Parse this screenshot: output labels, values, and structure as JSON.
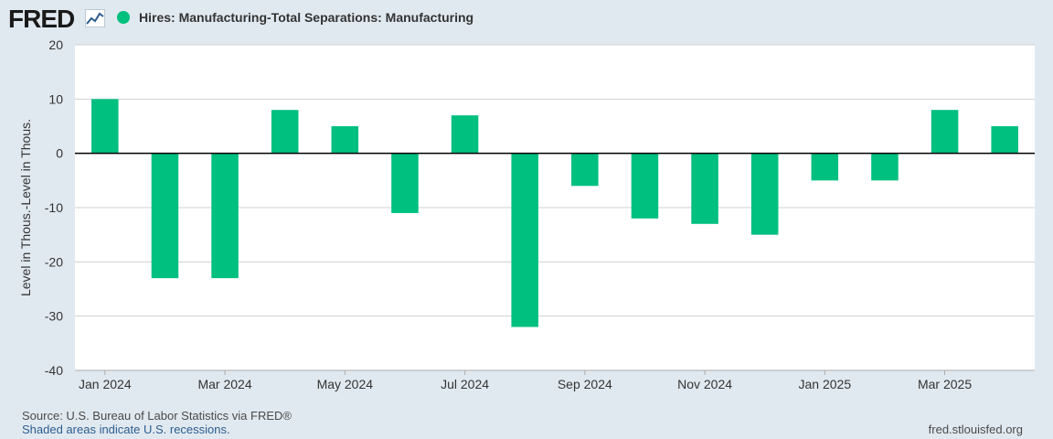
{
  "header": {
    "logo_text": "FRED",
    "legend_label": "Hires: Manufacturing-Total Separations: Manufacturing"
  },
  "colors": {
    "series": "#00c07f",
    "plot_bg": "#ffffff",
    "page_bg": "#e1e9f0",
    "grid": "#d0d0d0",
    "zero_line": "#000000"
  },
  "chart_data": {
    "type": "bar",
    "title": "Hires: Manufacturing-Total Separations: Manufacturing",
    "xlabel": "",
    "ylabel": "Level in Thous.-Level in Thous.",
    "ylim": [
      -40,
      20
    ],
    "yticks": [
      20,
      10,
      0,
      -10,
      -20,
      -30,
      -40
    ],
    "categories": [
      "Jan 2024",
      "Feb 2024",
      "Mar 2024",
      "Apr 2024",
      "May 2024",
      "Jun 2024",
      "Jul 2024",
      "Aug 2024",
      "Sep 2024",
      "Oct 2024",
      "Nov 2024",
      "Dec 2024",
      "Jan 2025",
      "Feb 2025",
      "Mar 2025",
      "Apr 2025"
    ],
    "values": [
      10,
      -23,
      -23,
      8,
      5,
      -11,
      7,
      -32,
      -6,
      -12,
      -13,
      -15,
      -5,
      -5,
      8,
      5
    ],
    "xtick_labels": [
      "Jan 2024",
      "Mar 2024",
      "May 2024",
      "Jul 2024",
      "Sep 2024",
      "Nov 2024",
      "Jan 2025",
      "Mar 2025"
    ],
    "xtick_indices": [
      0,
      2,
      4,
      6,
      8,
      10,
      12,
      14
    ]
  },
  "footer": {
    "source": "Source: U.S. Bureau of Labor Statistics via FRED®",
    "recessions": "Shaded areas indicate U.S. recessions.",
    "site": "fred.stlouisfed.org"
  }
}
